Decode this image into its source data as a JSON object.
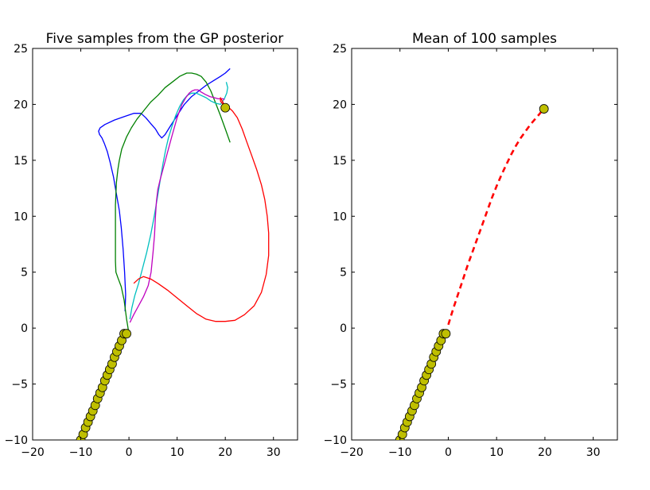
{
  "chart_data": [
    {
      "type": "line",
      "title": "Five samples from the GP posterior",
      "xlim": [
        -20,
        35
      ],
      "ylim": [
        -10,
        25
      ],
      "xticks": [
        -20,
        -10,
        0,
        10,
        20,
        30
      ],
      "yticks": [
        -10,
        -5,
        0,
        5,
        10,
        15,
        20,
        25
      ],
      "xtick_labels": [
        "−20",
        "−10",
        "0",
        "10",
        "20",
        "30"
      ],
      "ytick_labels": [
        "−10",
        "−5",
        "0",
        "5",
        "10",
        "15",
        "20",
        "25"
      ],
      "grid": false,
      "observed_points": {
        "color": "#bfbf00",
        "x": [
          -10.0,
          -9.5,
          -9.0,
          -8.5,
          -8.0,
          -7.5,
          -7.0,
          -6.5,
          -6.0,
          -5.5,
          -5.0,
          -4.5,
          -4.0,
          -3.5,
          -3.0,
          -2.5,
          -2.0,
          -1.5,
          -1.0,
          -0.5
        ],
        "y": [
          -10.0,
          -9.5,
          -8.9,
          -8.4,
          -7.9,
          -7.4,
          -6.9,
          -6.3,
          -5.8,
          -5.3,
          -4.7,
          -4.2,
          -3.7,
          -3.2,
          -2.6,
          -2.1,
          -1.6,
          -1.1,
          -0.5,
          -0.5
        ]
      },
      "target_point": {
        "x": 20,
        "y": 19.7,
        "color": "#bfbf00"
      },
      "series": [
        {
          "color": "#0000ff",
          "x": [
            -0.8,
            -0.7,
            -0.9,
            -1.2,
            -1.6,
            -2.0,
            -2.6,
            -3.2,
            -3.9,
            -4.5,
            -5.1,
            -5.6,
            -6.1,
            -6.3,
            -6.0,
            -5.0,
            -3.0,
            -1.0,
            1.0,
            2.5,
            3.5,
            4.5,
            5.5,
            6.2,
            6.8,
            7.5,
            8.5,
            10.0,
            11.5,
            13.0,
            14.5,
            16.0,
            17.5,
            19.0,
            20.0,
            21.0
          ],
          "y": [
            1.5,
            3.0,
            5.0,
            7.0,
            9.0,
            10.5,
            12.0,
            13.5,
            14.8,
            15.8,
            16.5,
            17.0,
            17.3,
            17.6,
            17.9,
            18.2,
            18.6,
            18.9,
            19.2,
            19.2,
            18.8,
            18.3,
            17.8,
            17.3,
            17.0,
            17.3,
            18.0,
            19.0,
            20.0,
            20.7,
            21.2,
            21.7,
            22.1,
            22.5,
            22.8,
            23.2
          ]
        },
        {
          "color": "#008000",
          "x": [
            0.0,
            -0.5,
            -1.0,
            -1.6,
            -2.3,
            -2.7,
            -2.8,
            -2.8,
            -2.8,
            -2.6,
            -2.3,
            -2.0,
            -1.5,
            -0.5,
            0.5,
            1.7,
            3.0,
            4.5,
            6.0,
            7.5,
            9.0,
            10.5,
            12.0,
            13.0,
            14.0,
            15.0,
            16.0,
            17.0,
            18.0,
            19.0,
            20.0,
            21.0
          ],
          "y": [
            -0.5,
            0.8,
            2.5,
            3.7,
            4.5,
            5.0,
            6.0,
            8.5,
            11.0,
            13.0,
            14.2,
            15.0,
            16.0,
            17.1,
            17.9,
            18.7,
            19.4,
            20.2,
            20.8,
            21.5,
            22.0,
            22.5,
            22.8,
            22.8,
            22.7,
            22.5,
            22.0,
            21.2,
            20.1,
            19.0,
            17.8,
            16.6
          ]
        },
        {
          "color": "#00bfbf",
          "x": [
            0.2,
            0.6,
            1.2,
            2.0,
            2.8,
            3.7,
            4.5,
            5.2,
            5.8,
            6.3,
            6.7,
            7.1,
            7.6,
            8.2,
            8.9,
            9.7,
            10.5,
            11.3,
            12.1,
            13.0,
            14.0,
            15.0,
            16.0,
            17.0,
            18.0,
            19.0,
            19.8,
            20.3,
            20.5,
            20.2
          ],
          "y": [
            0.8,
            1.8,
            2.9,
            4.0,
            5.3,
            6.8,
            8.3,
            9.9,
            11.4,
            12.7,
            13.8,
            14.8,
            15.9,
            17.0,
            18.0,
            19.0,
            19.8,
            20.4,
            20.8,
            21.0,
            21.0,
            20.8,
            20.6,
            20.3,
            20.1,
            20.0,
            20.5,
            21.0,
            21.5,
            22.0
          ]
        },
        {
          "color": "#bf00bf",
          "x": [
            0.2,
            1.0,
            2.0,
            3.0,
            4.0,
            4.6,
            5.0,
            5.3,
            5.5,
            5.7,
            6.0,
            6.5,
            7.0,
            8.0,
            9.0,
            10.0,
            11.0,
            11.8,
            12.5,
            13.1,
            13.7,
            14.3,
            15.0,
            15.8,
            16.8,
            17.7,
            18.5,
            19.2,
            19.6,
            19.8
          ],
          "y": [
            0.5,
            1.2,
            2.0,
            2.8,
            3.8,
            5.0,
            6.8,
            8.3,
            10.0,
            11.3,
            12.4,
            13.3,
            14.1,
            15.7,
            17.3,
            18.8,
            20.0,
            20.6,
            21.0,
            21.2,
            21.3,
            21.3,
            21.1,
            20.9,
            20.7,
            20.6,
            20.5,
            20.5,
            20.5,
            20.4
          ]
        },
        {
          "color": "#ff0000",
          "x": [
            1.0,
            2.0,
            3.0,
            4.5,
            6.0,
            8.0,
            10.0,
            12.0,
            14.0,
            16.0,
            18.0,
            20.0,
            22.0,
            24.0,
            26.0,
            27.5,
            28.5,
            29.0,
            29.0,
            28.7,
            28.2,
            27.5,
            26.5,
            25.5,
            24.5,
            23.5,
            22.5,
            21.5,
            20.5,
            19.5,
            19.0,
            19.0,
            19.5,
            20.0
          ],
          "y": [
            4.0,
            4.4,
            4.6,
            4.4,
            4.0,
            3.4,
            2.7,
            2.0,
            1.3,
            0.8,
            0.6,
            0.6,
            0.7,
            1.2,
            2.0,
            3.2,
            4.8,
            6.5,
            8.5,
            10.0,
            11.5,
            12.8,
            14.2,
            15.4,
            16.6,
            17.8,
            18.8,
            19.4,
            19.8,
            20.0,
            20.3,
            20.6,
            20.2,
            19.7
          ]
        }
      ]
    },
    {
      "type": "line",
      "title": "Mean of 100 samples",
      "xlim": [
        -20,
        35
      ],
      "ylim": [
        -10,
        25
      ],
      "xticks": [
        -20,
        -10,
        0,
        10,
        20,
        30
      ],
      "yticks": [
        -10,
        -5,
        0,
        5,
        10,
        15,
        20,
        25
      ],
      "xtick_labels": [
        "−20",
        "−10",
        "0",
        "10",
        "20",
        "30"
      ],
      "ytick_labels": [
        "−10",
        "−5",
        "0",
        "5",
        "10",
        "15",
        "20",
        "25"
      ],
      "grid": false,
      "observed_points": {
        "color": "#bfbf00",
        "x": [
          -10.0,
          -9.5,
          -9.0,
          -8.5,
          -8.0,
          -7.5,
          -7.0,
          -6.5,
          -6.0,
          -5.5,
          -5.0,
          -4.5,
          -4.0,
          -3.5,
          -3.0,
          -2.5,
          -2.0,
          -1.5,
          -1.0,
          -0.5
        ],
        "y": [
          -10.0,
          -9.5,
          -8.9,
          -8.4,
          -7.9,
          -7.4,
          -6.9,
          -6.3,
          -5.8,
          -5.3,
          -4.7,
          -4.2,
          -3.7,
          -3.2,
          -2.6,
          -2.1,
          -1.6,
          -1.1,
          -0.5,
          -0.5
        ]
      },
      "target_point": {
        "x": 19.8,
        "y": 19.6,
        "color": "#bfbf00"
      },
      "series": [
        {
          "color": "#ff0000",
          "dashed": true,
          "x": [
            0.0,
            1.0,
            2.0,
            3.0,
            4.0,
            5.0,
            6.0,
            7.0,
            8.0,
            9.0,
            10.0,
            11.0,
            12.0,
            13.0,
            14.0,
            15.0,
            16.0,
            17.0,
            18.0,
            19.0,
            19.8
          ],
          "y": [
            0.3,
            1.7,
            3.0,
            4.3,
            5.6,
            6.8,
            8.0,
            9.2,
            10.4,
            11.6,
            12.7,
            13.7,
            14.6,
            15.5,
            16.3,
            17.0,
            17.6,
            18.2,
            18.7,
            19.2,
            19.7
          ]
        }
      ]
    }
  ]
}
